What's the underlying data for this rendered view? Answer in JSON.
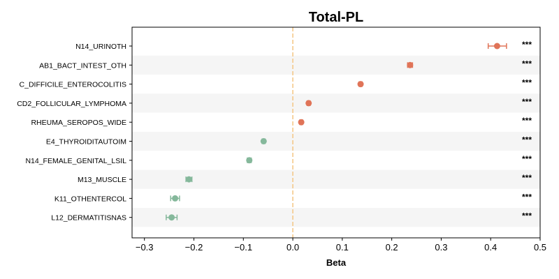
{
  "chart_data": {
    "type": "forest",
    "title": "Total-PL",
    "xlabel": "Beta",
    "xlim": [
      -0.325,
      0.5
    ],
    "xticks": [
      -0.3,
      -0.2,
      -0.1,
      0.0,
      0.1,
      0.2,
      0.3,
      0.4,
      0.5
    ],
    "xtick_labels": [
      "−0.3",
      "−0.2",
      "−0.1",
      "0.0",
      "0.1",
      "0.2",
      "0.3",
      "0.4",
      "0.5"
    ],
    "reference_line": 0.0,
    "colors": {
      "positive": "#e07458",
      "negative": "#85b89b",
      "reference": "#f4c98a",
      "band": "#f5f5f5"
    },
    "rows": [
      {
        "label": "N14_URINOTH",
        "beta": 0.413,
        "ci_low": 0.395,
        "ci_high": 0.432,
        "sig": "***"
      },
      {
        "label": "AB1_BACT_INTEST_OTH",
        "beta": 0.237,
        "ci_low": 0.232,
        "ci_high": 0.242,
        "sig": "***"
      },
      {
        "label": "C_DIFFICILE_ENTEROCOLITIS",
        "beta": 0.137,
        "ci_low": 0.134,
        "ci_high": 0.14,
        "sig": "***"
      },
      {
        "label": "CD2_FOLLICULAR_LYMPHOMA",
        "beta": 0.032,
        "ci_low": 0.029,
        "ci_high": 0.035,
        "sig": "***"
      },
      {
        "label": "RHEUMA_SEROPOS_WIDE",
        "beta": 0.017,
        "ci_low": 0.014,
        "ci_high": 0.02,
        "sig": "***"
      },
      {
        "label": "E4_THYROIDITAUTOIM",
        "beta": -0.059,
        "ci_low": -0.062,
        "ci_high": -0.056,
        "sig": "***"
      },
      {
        "label": "N14_FEMALE_GENITAL_LSIL",
        "beta": -0.088,
        "ci_low": -0.092,
        "ci_high": -0.084,
        "sig": "***"
      },
      {
        "label": "M13_MUSCLE",
        "beta": -0.21,
        "ci_low": -0.216,
        "ci_high": -0.204,
        "sig": "***"
      },
      {
        "label": "K11_OTHENTERCOL",
        "beta": -0.238,
        "ci_low": -0.247,
        "ci_high": -0.229,
        "sig": "***"
      },
      {
        "label": "L12_DERMATITISNAS",
        "beta": -0.245,
        "ci_low": -0.256,
        "ci_high": -0.234,
        "sig": "***"
      }
    ]
  }
}
